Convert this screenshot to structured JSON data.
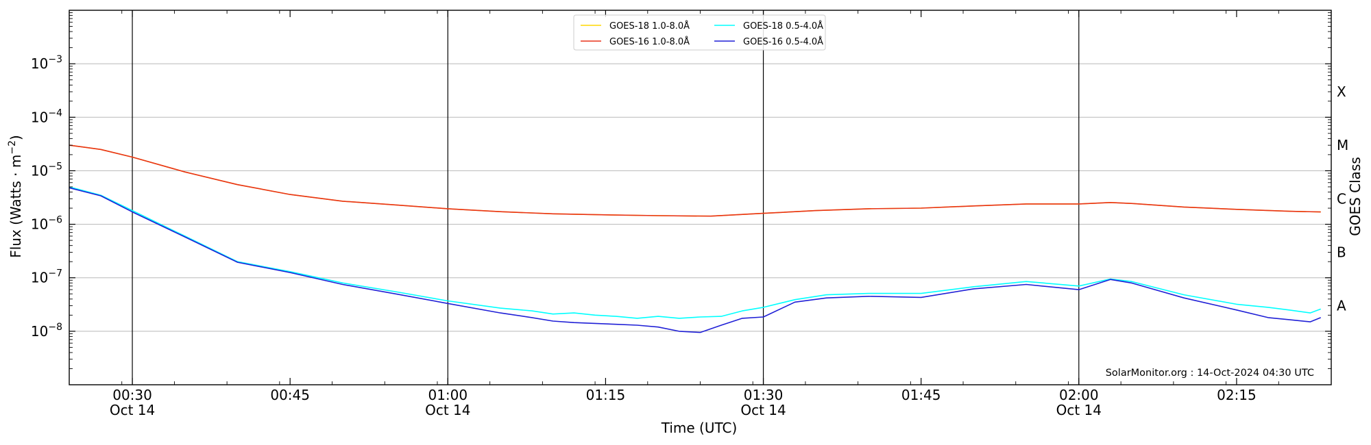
{
  "chart_data": {
    "type": "line",
    "xlabel": "Time (UTC)",
    "ylabel": "Flux (Watts · m⁻²)",
    "ylabel_base": "Flux (Watts · m",
    "ylabel_sup": "−2",
    "ylabel_end": ")",
    "right_label": "GOES Class",
    "credit": "SolarMonitor.org : 14-Oct-2024 04:30 UTC",
    "y_scale": "log",
    "ylim": [
      1e-09,
      0.01
    ],
    "xlim": [
      "00:24",
      "02:24"
    ],
    "grid": "horizontal at decades",
    "legend_position": "top-center",
    "yticks": [
      {
        "value": 1e-08,
        "base": "10",
        "exp": "−8"
      },
      {
        "value": 1e-07,
        "base": "10",
        "exp": "−7"
      },
      {
        "value": 1e-06,
        "base": "10",
        "exp": "−6"
      },
      {
        "value": 1e-05,
        "base": "10",
        "exp": "−5"
      },
      {
        "value": 0.0001,
        "base": "10",
        "exp": "−4"
      },
      {
        "value": 0.001,
        "base": "10",
        "exp": "−3"
      }
    ],
    "goes_classes": [
      {
        "label": "A",
        "value": 3e-08
      },
      {
        "label": "B",
        "value": 3e-07
      },
      {
        "label": "C",
        "value": 3e-06
      },
      {
        "label": "M",
        "value": 3e-05
      },
      {
        "label": "X",
        "value": 0.0003
      }
    ],
    "xticks": [
      {
        "time": "00:30",
        "line1": "00:30",
        "line2": "Oct 14",
        "vline": true
      },
      {
        "time": "00:45",
        "line1": "00:45",
        "line2": "",
        "vline": false
      },
      {
        "time": "01:00",
        "line1": "01:00",
        "line2": "Oct 14",
        "vline": true
      },
      {
        "time": "01:15",
        "line1": "01:15",
        "line2": "",
        "vline": false
      },
      {
        "time": "01:30",
        "line1": "01:30",
        "line2": "Oct 14",
        "vline": true
      },
      {
        "time": "01:45",
        "line1": "01:45",
        "line2": "",
        "vline": false
      },
      {
        "time": "02:00",
        "line1": "02:00",
        "line2": "Oct 14",
        "vline": true
      },
      {
        "time": "02:15",
        "line1": "02:15",
        "line2": "",
        "vline": false
      }
    ],
    "series": [
      {
        "name": "GOES-18 1.0-8.0Å",
        "color": "#ffd700",
        "legend_col": 0,
        "legend_row": 0,
        "x": [
          "00:24",
          "00:27",
          "00:30",
          "00:35",
          "00:40",
          "00:45",
          "00:50",
          "00:55",
          "01:00",
          "01:05",
          "01:10",
          "01:15",
          "01:20",
          "01:25",
          "01:30",
          "01:35",
          "01:40",
          "01:45",
          "01:50",
          "01:55",
          "02:00",
          "02:03",
          "02:05",
          "02:10",
          "02:15",
          "02:20",
          "02:23"
        ],
        "y": [
          3e-05,
          2.5e-05,
          1.8e-05,
          9.5e-06,
          5.5e-06,
          3.6e-06,
          2.7e-06,
          2.3e-06,
          1.95e-06,
          1.72e-06,
          1.57e-06,
          1.5e-06,
          1.45e-06,
          1.42e-06,
          1.6e-06,
          1.8e-06,
          1.95e-06,
          2e-06,
          2.2e-06,
          2.4e-06,
          2.4e-06,
          2.55e-06,
          2.45e-06,
          2.1e-06,
          1.9e-06,
          1.75e-06,
          1.7e-06
        ]
      },
      {
        "name": "GOES-16 1.0-8.0Å",
        "color": "#e8321a",
        "legend_col": 0,
        "legend_row": 1,
        "x": [
          "00:24",
          "00:27",
          "00:30",
          "00:35",
          "00:40",
          "00:45",
          "00:50",
          "00:55",
          "01:00",
          "01:05",
          "01:10",
          "01:15",
          "01:20",
          "01:25",
          "01:30",
          "01:35",
          "01:40",
          "01:45",
          "01:50",
          "01:55",
          "02:00",
          "02:03",
          "02:05",
          "02:10",
          "02:15",
          "02:20",
          "02:23"
        ],
        "y": [
          3e-05,
          2.5e-05,
          1.8e-05,
          9.5e-06,
          5.5e-06,
          3.6e-06,
          2.7e-06,
          2.3e-06,
          1.95e-06,
          1.72e-06,
          1.57e-06,
          1.5e-06,
          1.45e-06,
          1.42e-06,
          1.6e-06,
          1.8e-06,
          1.95e-06,
          2e-06,
          2.2e-06,
          2.4e-06,
          2.4e-06,
          2.55e-06,
          2.45e-06,
          2.1e-06,
          1.9e-06,
          1.75e-06,
          1.7e-06
        ]
      },
      {
        "name": "GOES-18 0.5-4.0Å",
        "color": "#00ffff",
        "legend_col": 1,
        "legend_row": 0,
        "x": [
          "00:24",
          "00:27",
          "00:30",
          "00:35",
          "00:40",
          "00:45",
          "00:50",
          "00:55",
          "01:00",
          "01:05",
          "01:08",
          "01:10",
          "01:12",
          "01:14",
          "01:16",
          "01:18",
          "01:20",
          "01:22",
          "01:24",
          "01:26",
          "01:28",
          "01:30",
          "01:33",
          "01:36",
          "01:40",
          "01:45",
          "01:50",
          "01:55",
          "02:00",
          "02:03",
          "02:05",
          "02:10",
          "02:15",
          "02:18",
          "02:20",
          "02:22",
          "02:23"
        ],
        "y": [
          5e-06,
          3.5e-06,
          1.8e-06,
          6e-07,
          2e-07,
          1.3e-07,
          8e-08,
          5.5e-08,
          3.7e-08,
          2.7e-08,
          2.4e-08,
          2.1e-08,
          2.2e-08,
          2e-08,
          1.9e-08,
          1.75e-08,
          1.9e-08,
          1.75e-08,
          1.85e-08,
          1.9e-08,
          2.4e-08,
          2.8e-08,
          3.9e-08,
          4.8e-08,
          5.1e-08,
          5.1e-08,
          6.8e-08,
          8.5e-08,
          7e-08,
          9.5e-08,
          8.5e-08,
          4.8e-08,
          3.2e-08,
          2.8e-08,
          2.5e-08,
          2.2e-08,
          2.6e-08
        ]
      },
      {
        "name": "GOES-16 0.5-4.0Å",
        "color": "#1f1fd6",
        "legend_col": 1,
        "legend_row": 1,
        "x": [
          "00:24",
          "00:27",
          "00:30",
          "00:35",
          "00:40",
          "00:45",
          "00:50",
          "00:55",
          "01:00",
          "01:05",
          "01:08",
          "01:10",
          "01:12",
          "01:14",
          "01:16",
          "01:18",
          "01:20",
          "01:22",
          "01:24",
          "01:26",
          "01:28",
          "01:30",
          "01:33",
          "01:36",
          "01:40",
          "01:45",
          "01:50",
          "01:55",
          "02:00",
          "02:03",
          "02:05",
          "02:10",
          "02:15",
          "02:18",
          "02:20",
          "02:22",
          "02:23"
        ],
        "y": [
          4.8e-06,
          3.4e-06,
          1.7e-06,
          5.8e-07,
          1.95e-07,
          1.25e-07,
          7.5e-08,
          5e-08,
          3.3e-08,
          2.2e-08,
          1.8e-08,
          1.55e-08,
          1.45e-08,
          1.4e-08,
          1.35e-08,
          1.3e-08,
          1.2e-08,
          1e-08,
          9.5e-09,
          1.3e-08,
          1.75e-08,
          1.85e-08,
          3.5e-08,
          4.2e-08,
          4.5e-08,
          4.3e-08,
          6.2e-08,
          7.5e-08,
          6e-08,
          9.3e-08,
          8e-08,
          4.2e-08,
          2.5e-08,
          1.8e-08,
          1.65e-08,
          1.5e-08,
          1.8e-08
        ]
      }
    ]
  }
}
